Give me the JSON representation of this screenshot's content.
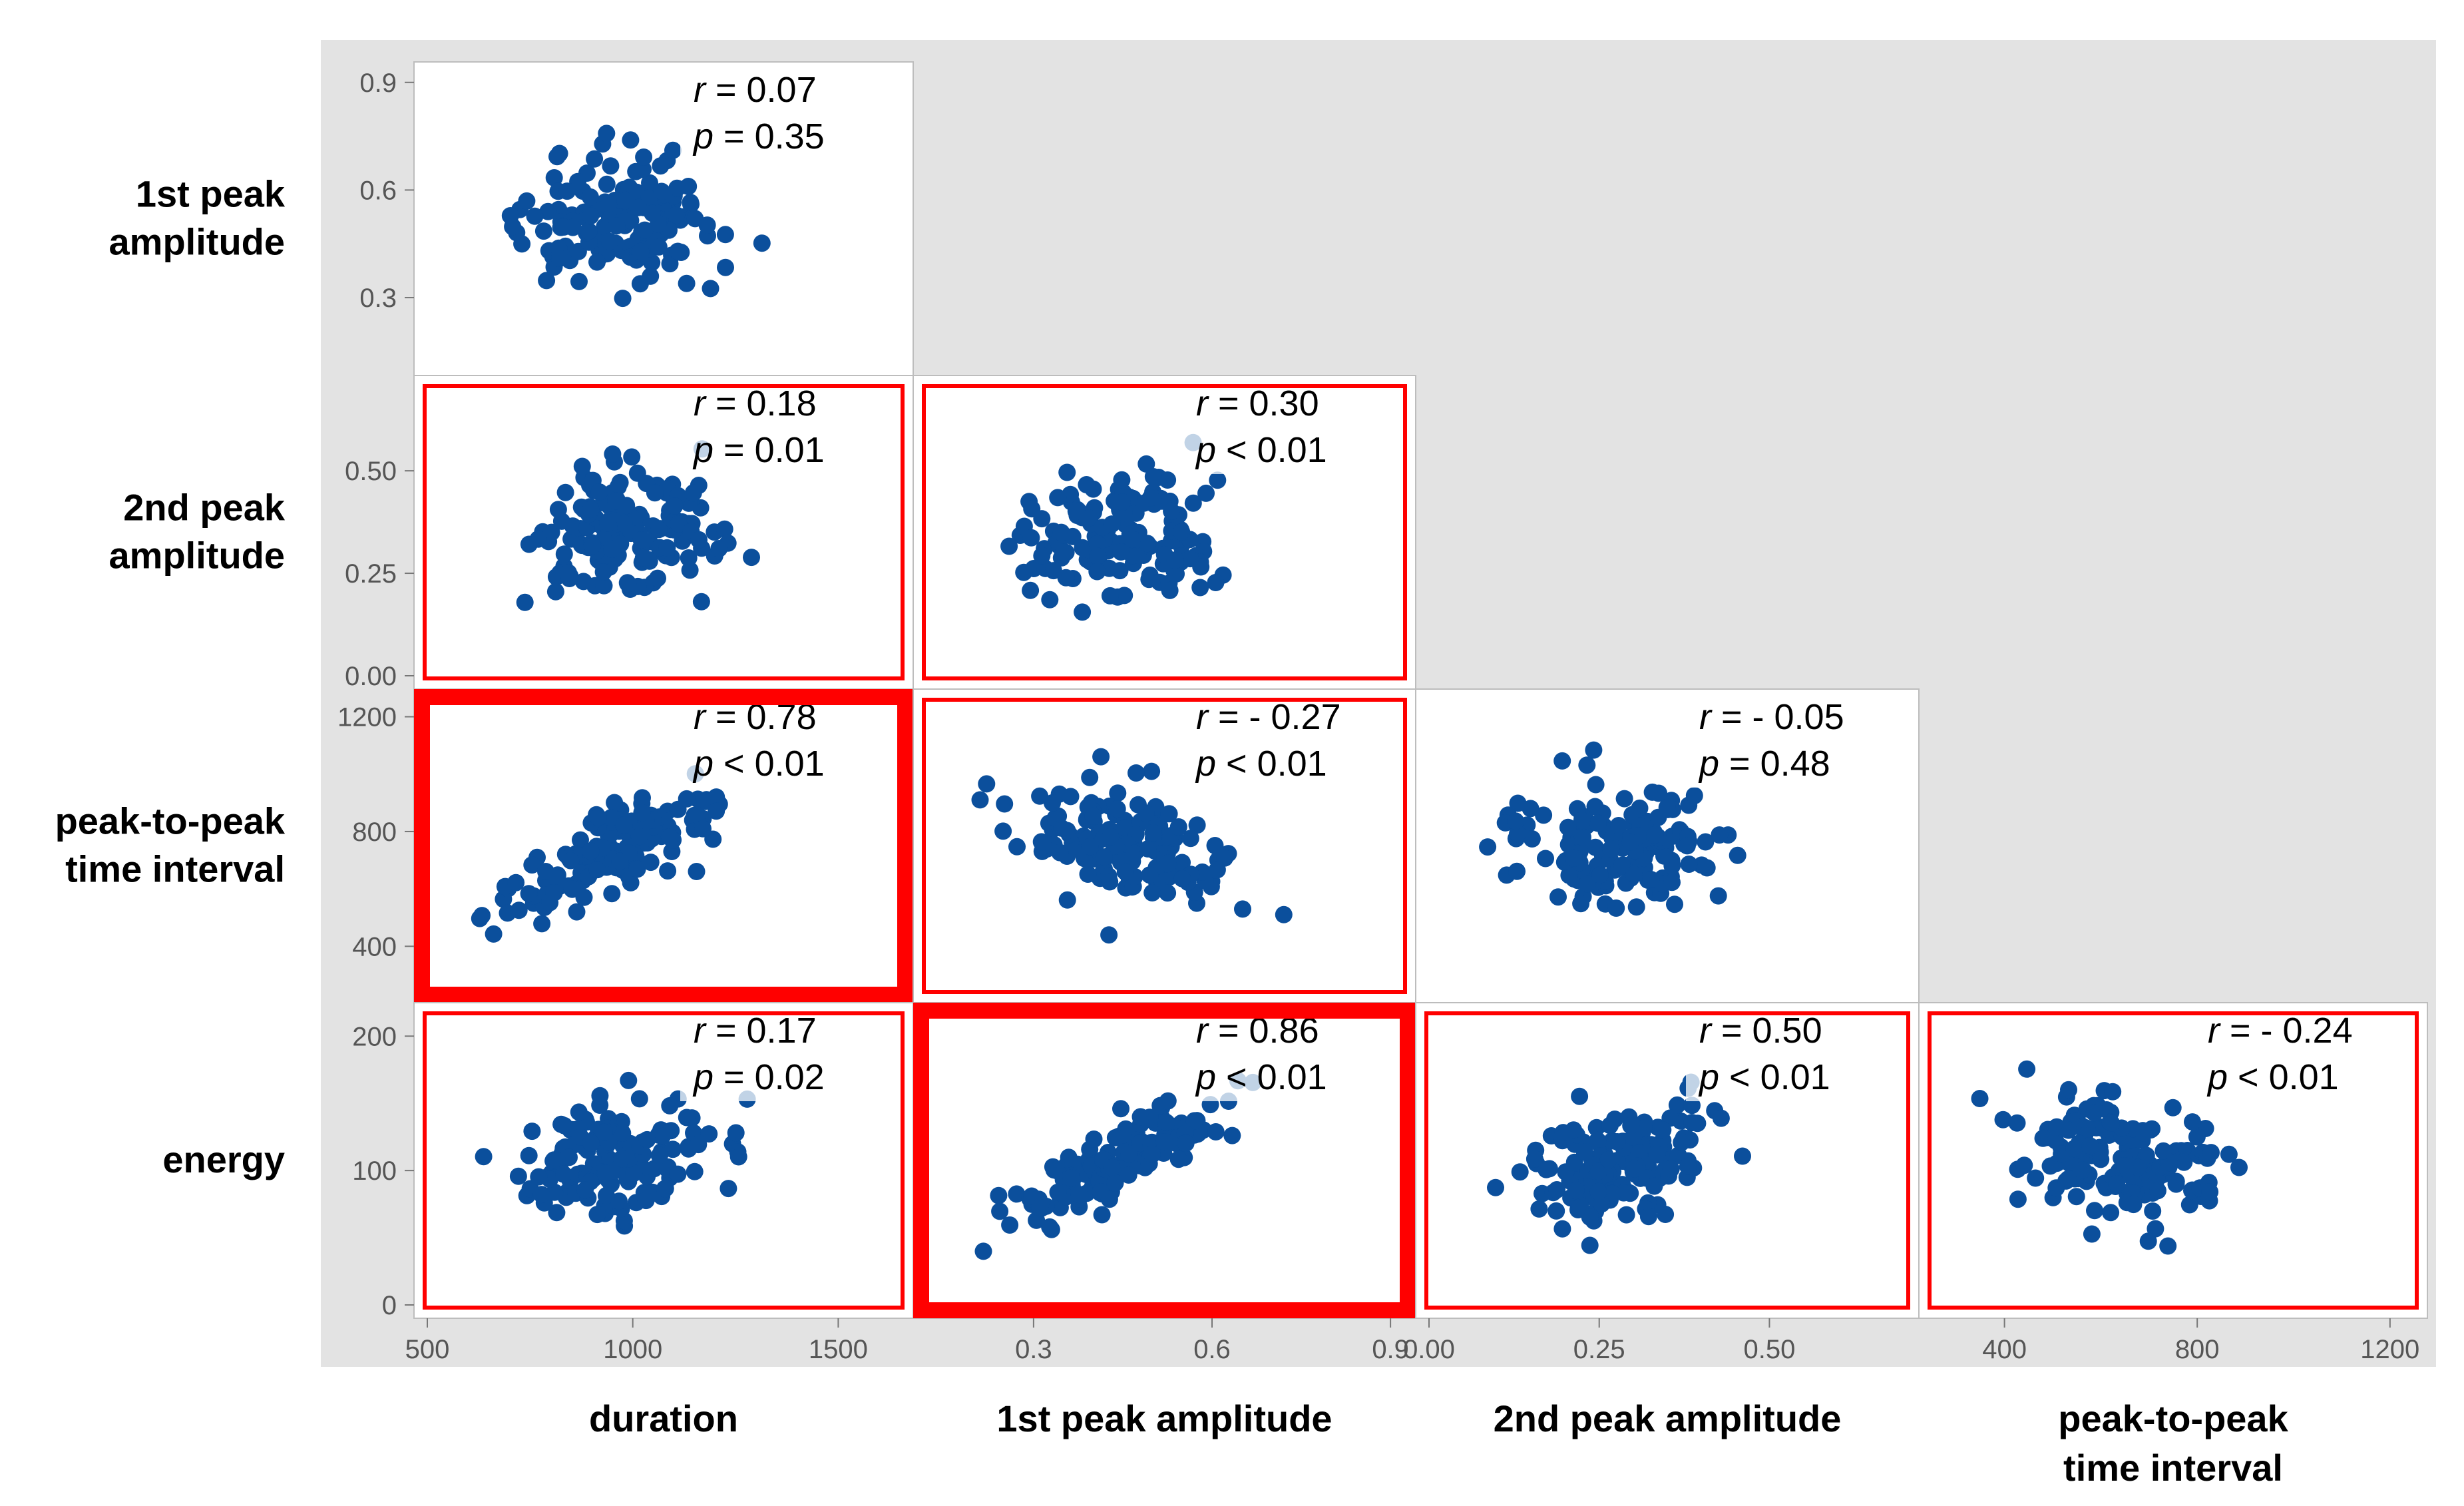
{
  "colors": {
    "background": "#e3e3e3",
    "panel": "#ffffff",
    "point": "#0b4f9c",
    "highlight": "#ff0000",
    "tick_text": "#555555",
    "label_text": "#000000"
  },
  "chart_data": {
    "type": "scatter",
    "title": "",
    "layout": "lower-triangular scatterplot matrix",
    "variables": [
      {
        "key": "duration",
        "range": [
          500,
          1650
        ],
        "ticks": [
          500,
          1000,
          1500
        ],
        "tick_labels": [
          "500",
          "1000",
          "1500"
        ]
      },
      {
        "key": "peak1",
        "range": [
          0.12,
          0.92
        ],
        "ticks": [
          0.3,
          0.6,
          0.9
        ],
        "tick_labels": [
          "0.3",
          "0.6",
          "0.9"
        ],
        "x_tick_labels": [
          "0.3",
          "0.6",
          "0.9"
        ]
      },
      {
        "key": "peak2",
        "range": [
          0.0,
          0.7
        ],
        "ticks": [
          0.0,
          0.25,
          0.5
        ],
        "tick_labels": [
          "0.00",
          "0.25",
          "0.50"
        ],
        "x_tick_labels": [
          "0.00",
          "0.25",
          "0.50"
        ]
      },
      {
        "key": "interval",
        "range": [
          250,
          1250
        ],
        "ticks": [
          400,
          800,
          1200
        ],
        "tick_labels": [
          "400",
          "800",
          "1200"
        ]
      },
      {
        "key": "energy",
        "range": [
          0,
          215
        ],
        "ticks": [
          0,
          100,
          200
        ],
        "tick_labels": [
          "0",
          "100",
          "200"
        ]
      }
    ],
    "row_labels": [
      [
        "1st peak",
        "amplitude"
      ],
      [
        "2nd peak",
        "amplitude"
      ],
      [
        "peak-to-peak",
        "time interval"
      ],
      [
        "energy"
      ]
    ],
    "column_labels": [
      [
        "duration"
      ],
      [
        "1st peak amplitude"
      ],
      [
        "2nd peak amplitude"
      ],
      [
        "peak-to-peak",
        "time interval"
      ]
    ],
    "panels": [
      {
        "row": 0,
        "col": 0,
        "x": "duration",
        "y": "peak1",
        "r": "0.07",
        "p": "0.35",
        "p_rel": "=",
        "highlight": "none",
        "trend": 0.07
      },
      {
        "row": 1,
        "col": 0,
        "x": "duration",
        "y": "peak2",
        "r": "0.18",
        "p": "0.01",
        "p_rel": "=",
        "highlight": "thin",
        "trend": 0.18
      },
      {
        "row": 1,
        "col": 1,
        "x": "peak1",
        "y": "peak2",
        "r": "0.30",
        "p": "0.01",
        "p_rel": "<",
        "highlight": "thin",
        "trend": 0.3
      },
      {
        "row": 2,
        "col": 0,
        "x": "duration",
        "y": "interval",
        "r": "0.78",
        "p": "0.01",
        "p_rel": "<",
        "highlight": "thick",
        "trend": 0.78
      },
      {
        "row": 2,
        "col": 1,
        "x": "peak1",
        "y": "interval",
        "r": "- 0.27",
        "p": "0.01",
        "p_rel": "<",
        "highlight": "thin",
        "trend": -0.27
      },
      {
        "row": 2,
        "col": 2,
        "x": "peak2",
        "y": "interval",
        "r": "- 0.05",
        "p": "0.48",
        "p_rel": "=",
        "highlight": "none",
        "trend": -0.05
      },
      {
        "row": 3,
        "col": 0,
        "x": "duration",
        "y": "energy",
        "r": "0.17",
        "p": "0.02",
        "p_rel": "=",
        "highlight": "thin",
        "trend": 0.17
      },
      {
        "row": 3,
        "col": 1,
        "x": "peak1",
        "y": "energy",
        "r": "0.86",
        "p": "0.01",
        "p_rel": "<",
        "highlight": "thick",
        "trend": 0.86
      },
      {
        "row": 3,
        "col": 2,
        "x": "peak2",
        "y": "energy",
        "r": "0.50",
        "p": "0.01",
        "p_rel": "<",
        "highlight": "thin",
        "trend": 0.5
      },
      {
        "row": 3,
        "col": 3,
        "x": "interval",
        "y": "energy",
        "r": "- 0.24",
        "p": "0.01",
        "p_rel": "<",
        "highlight": "thin",
        "trend": -0.24
      }
    ],
    "points_per_panel": 150,
    "stat_labels": {
      "r": "r",
      "p": "p",
      "eq": "="
    }
  }
}
